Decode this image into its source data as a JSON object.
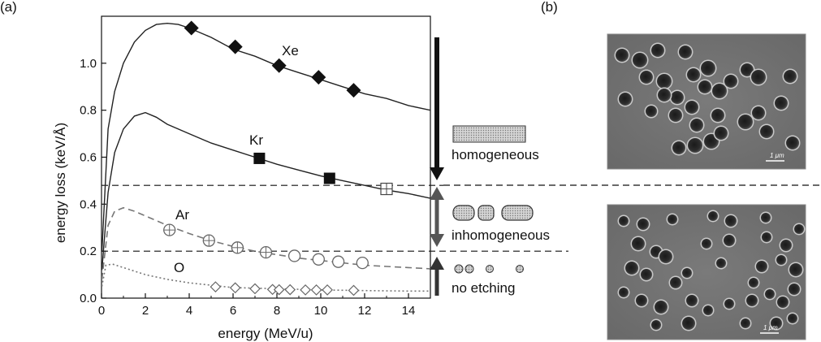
{
  "panels": {
    "a": "(a)",
    "b": "(b)"
  },
  "chart_data": {
    "type": "scatter",
    "xlabel": "energy (MeV/u)",
    "ylabel": "energy loss (keV/Å)",
    "xlim": [
      0,
      15
    ],
    "ylim": [
      0,
      1.2
    ],
    "xticks": [
      0,
      2,
      4,
      6,
      8,
      10,
      12,
      14
    ],
    "yticks": [
      0.0,
      0.2,
      0.4,
      0.6,
      0.8,
      1.0
    ],
    "thresholds": [
      0.48,
      0.2
    ],
    "series": [
      {
        "name": "Xe",
        "style": "solid",
        "marker": "diamond-filled",
        "curve": [
          [
            0.02,
            0.2
          ],
          [
            0.3,
            0.72
          ],
          [
            0.6,
            0.88
          ],
          [
            1,
            1.0
          ],
          [
            1.5,
            1.09
          ],
          [
            2,
            1.14
          ],
          [
            2.5,
            1.165
          ],
          [
            3,
            1.17
          ],
          [
            3.5,
            1.165
          ],
          [
            4,
            1.15
          ],
          [
            5,
            1.11
          ],
          [
            6,
            1.06
          ],
          [
            7,
            1.03
          ],
          [
            8,
            0.99
          ],
          [
            9,
            0.96
          ],
          [
            10,
            0.93
          ],
          [
            11,
            0.9
          ],
          [
            12,
            0.87
          ],
          [
            13,
            0.85
          ],
          [
            14,
            0.82
          ],
          [
            15,
            0.8
          ]
        ],
        "points": [
          [
            4.1,
            1.15
          ],
          [
            6.1,
            1.07
          ],
          [
            8.1,
            0.99
          ],
          [
            9.9,
            0.94
          ],
          [
            11.5,
            0.885
          ]
        ]
      },
      {
        "name": "Kr",
        "style": "solid",
        "marker": "square-filled",
        "curve": [
          [
            0.02,
            0.12
          ],
          [
            0.3,
            0.45
          ],
          [
            0.6,
            0.62
          ],
          [
            1,
            0.72
          ],
          [
            1.5,
            0.775
          ],
          [
            2,
            0.79
          ],
          [
            2.5,
            0.77
          ],
          [
            3,
            0.74
          ],
          [
            4,
            0.7
          ],
          [
            5,
            0.66
          ],
          [
            6,
            0.63
          ],
          [
            7,
            0.6
          ],
          [
            8,
            0.57
          ],
          [
            9,
            0.545
          ],
          [
            10,
            0.52
          ],
          [
            11,
            0.5
          ],
          [
            12,
            0.48
          ],
          [
            13,
            0.46
          ],
          [
            14,
            0.445
          ],
          [
            15,
            0.425
          ]
        ],
        "points": [
          [
            7.2,
            0.595
          ],
          [
            10.4,
            0.51
          ]
        ]
      },
      {
        "name": "Kr (crossed)",
        "style": "none",
        "marker": "square-cross",
        "points": [
          [
            13.0,
            0.465
          ]
        ]
      },
      {
        "name": "Ar",
        "style": "dashed",
        "marker": "circle-cross",
        "curve": [
          [
            0.02,
            0.08
          ],
          [
            0.3,
            0.31
          ],
          [
            0.6,
            0.37
          ],
          [
            1,
            0.385
          ],
          [
            1.5,
            0.37
          ],
          [
            2,
            0.35
          ],
          [
            3,
            0.31
          ],
          [
            4,
            0.275
          ],
          [
            5,
            0.245
          ],
          [
            6,
            0.22
          ],
          [
            7,
            0.2
          ],
          [
            8,
            0.185
          ],
          [
            9,
            0.17
          ],
          [
            10,
            0.16
          ],
          [
            11,
            0.15
          ],
          [
            12,
            0.14
          ],
          [
            13,
            0.135
          ],
          [
            14,
            0.13
          ],
          [
            15,
            0.125
          ]
        ],
        "points": [
          [
            3.1,
            0.29
          ],
          [
            4.9,
            0.245
          ],
          [
            6.2,
            0.215
          ],
          [
            7.5,
            0.195
          ]
        ]
      },
      {
        "name": "Ar (open)",
        "style": "none",
        "marker": "circle-open",
        "points": [
          [
            8.8,
            0.18
          ],
          [
            9.9,
            0.165
          ],
          [
            10.8,
            0.155
          ],
          [
            11.9,
            0.15
          ]
        ]
      },
      {
        "name": "O",
        "style": "dotted",
        "marker": "diamond-open",
        "curve": [
          [
            0.02,
            0.05
          ],
          [
            0.2,
            0.14
          ],
          [
            0.5,
            0.145
          ],
          [
            1,
            0.13
          ],
          [
            2,
            0.1
          ],
          [
            3,
            0.08
          ],
          [
            4,
            0.065
          ],
          [
            5,
            0.055
          ],
          [
            6,
            0.045
          ],
          [
            8,
            0.04
          ],
          [
            10,
            0.035
          ],
          [
            12,
            0.032
          ],
          [
            14,
            0.03
          ],
          [
            15,
            0.03
          ]
        ],
        "points": [
          [
            5.2,
            0.048
          ],
          [
            6.1,
            0.044
          ],
          [
            7.0,
            0.04
          ],
          [
            7.8,
            0.037
          ],
          [
            8.1,
            0.036
          ],
          [
            8.6,
            0.036
          ],
          [
            9.3,
            0.035
          ],
          [
            9.8,
            0.035
          ],
          [
            10.3,
            0.035
          ],
          [
            11.5,
            0.033
          ]
        ]
      }
    ],
    "series_labels": {
      "Xe": "Xe",
      "Kr": "Kr",
      "Ar": "Ar",
      "O": "O"
    }
  },
  "legend": {
    "homogeneous": "homogeneous",
    "inhomogeneous": "inhomogeneous",
    "no_etching": "no etching"
  },
  "micrographs": {
    "top_scale": "1 μm",
    "bottom_scale": "1 μm"
  }
}
